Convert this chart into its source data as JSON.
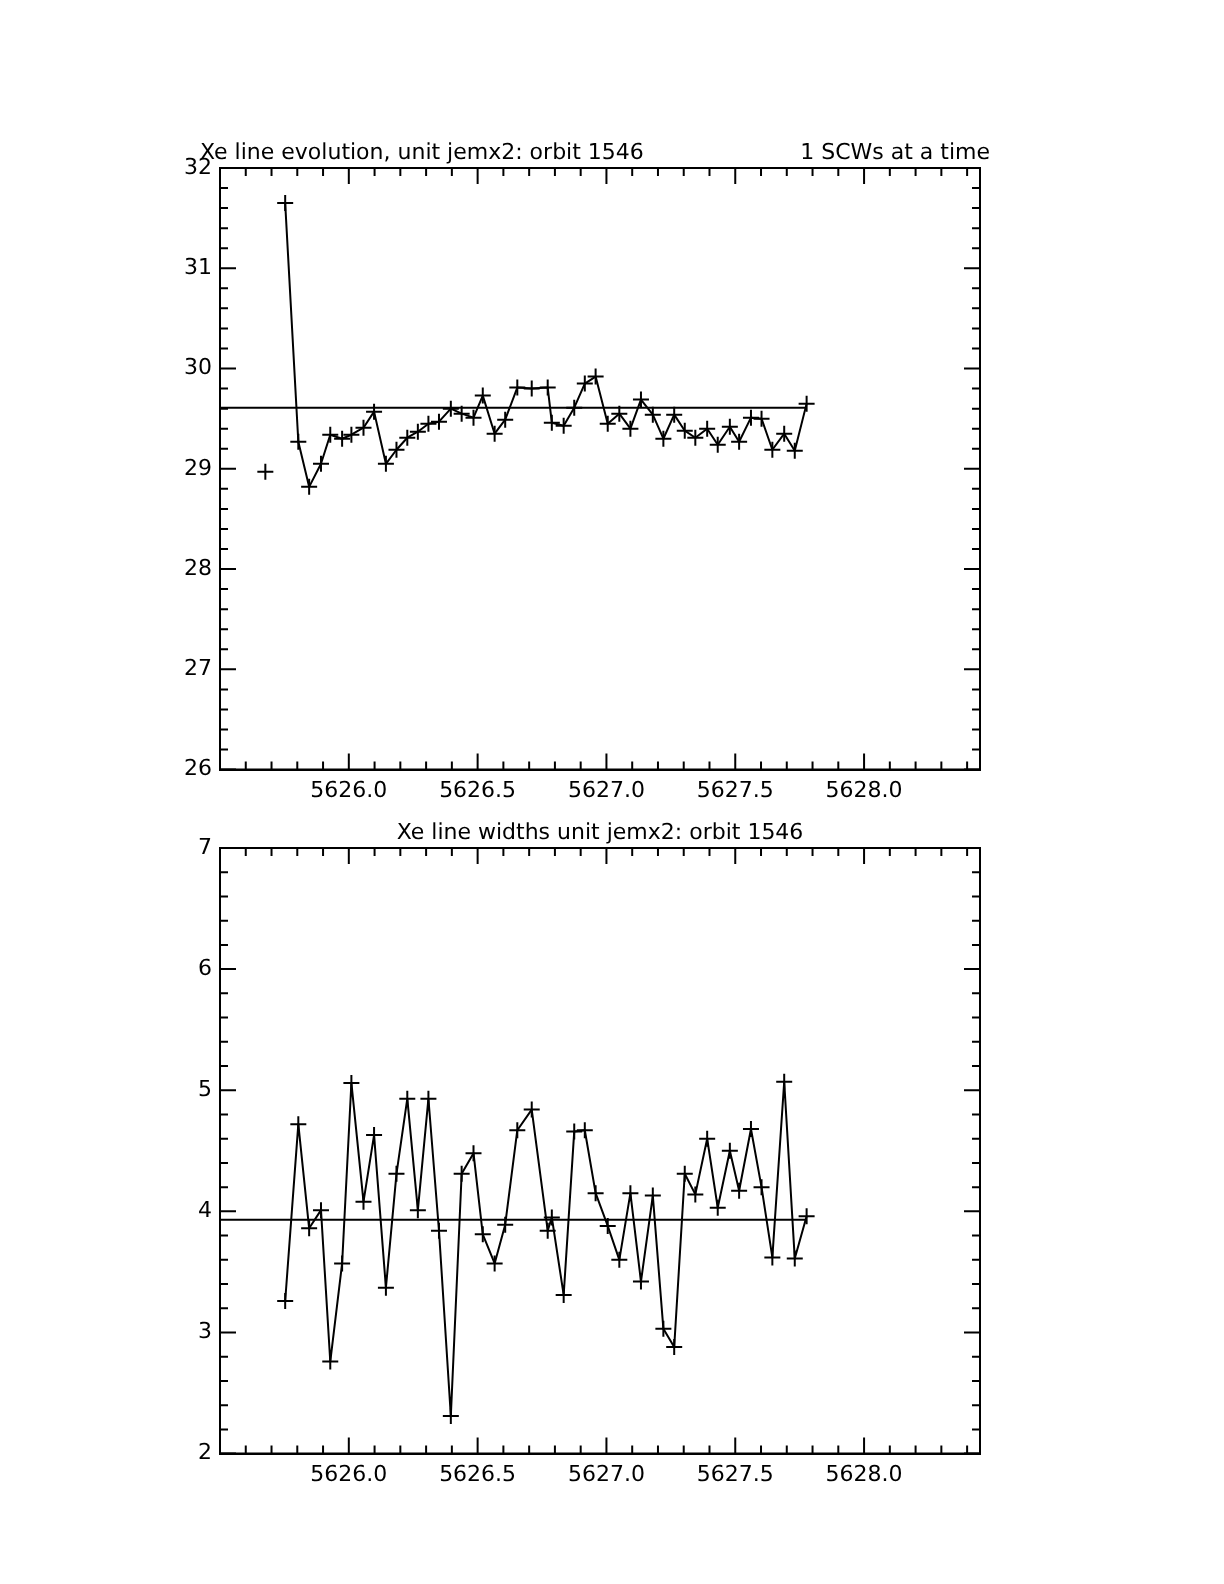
{
  "chart_data": [
    {
      "type": "line",
      "title": "Xe line evolution, unit jemx2: orbit 1546",
      "subtitle": "1 SCWs at a time",
      "marker": "cross",
      "grid": false,
      "legend": false,
      "x": [
        5625.676,
        5625.715,
        5625.753,
        5625.804,
        5625.846,
        5625.892,
        5625.928,
        5625.974,
        5626.01,
        5626.057,
        5626.098,
        5626.144,
        5626.185,
        5626.227,
        5626.268,
        5626.309,
        5626.35,
        5626.396,
        5626.438,
        5626.484,
        5626.52,
        5626.566,
        5626.607,
        5626.654,
        5626.71,
        5626.772,
        5626.788,
        5626.834,
        5626.875,
        5626.916,
        5626.958,
        5627.005,
        5627.05,
        5627.093,
        5627.134,
        5627.18,
        5627.221,
        5627.263,
        5627.304,
        5627.345,
        5627.391,
        5627.432,
        5627.479,
        5627.515,
        5627.561,
        5627.602,
        5627.644,
        5627.69,
        5627.731,
        5627.777
      ],
      "series": [
        {
          "color": "#000000",
          "values": [
            28.97,
            null,
            31.65,
            29.27,
            28.82,
            29.05,
            29.34,
            29.3,
            29.34,
            29.41,
            29.57,
            29.05,
            29.19,
            29.31,
            29.37,
            29.45,
            29.47,
            29.6,
            29.55,
            29.51,
            29.73,
            29.35,
            29.49,
            29.81,
            29.8,
            29.81,
            29.46,
            29.43,
            29.61,
            29.85,
            29.92,
            29.45,
            29.55,
            29.4,
            29.69,
            29.54,
            29.3,
            29.54,
            29.38,
            29.31,
            29.4,
            29.24,
            29.42,
            29.27,
            29.51,
            29.5,
            29.19,
            29.35,
            29.18,
            29.65
          ]
        }
      ],
      "ref_lines": [
        {
          "axis": "y",
          "value": 29.61,
          "color": "#000000"
        }
      ],
      "xlim": [
        5625.5,
        5628.45
      ],
      "xticks": [
        {
          "value": 5625.6,
          "label": null
        },
        {
          "value": 5625.7,
          "label": null
        },
        {
          "value": 5625.8,
          "label": null
        },
        {
          "value": 5625.9,
          "label": null
        },
        {
          "value": 5626,
          "label": "5626.0"
        },
        {
          "value": 5626.1,
          "label": null
        },
        {
          "value": 5626.2,
          "label": null
        },
        {
          "value": 5626.3,
          "label": null
        },
        {
          "value": 5626.4,
          "label": null
        },
        {
          "value": 5626.5,
          "label": "5626.5"
        },
        {
          "value": 5626.6,
          "label": null
        },
        {
          "value": 5626.7,
          "label": null
        },
        {
          "value": 5626.8,
          "label": null
        },
        {
          "value": 5626.9,
          "label": null
        },
        {
          "value": 5627,
          "label": "5627.0"
        },
        {
          "value": 5627.1,
          "label": null
        },
        {
          "value": 5627.2,
          "label": null
        },
        {
          "value": 5627.3,
          "label": null
        },
        {
          "value": 5627.4,
          "label": null
        },
        {
          "value": 5627.5,
          "label": "5627.5"
        },
        {
          "value": 5627.6,
          "label": null
        },
        {
          "value": 5627.7,
          "label": null
        },
        {
          "value": 5627.8,
          "label": null
        },
        {
          "value": 5627.9,
          "label": null
        },
        {
          "value": 5628,
          "label": "5628.0"
        },
        {
          "value": 5628.1,
          "label": null
        },
        {
          "value": 5628.2,
          "label": null
        },
        {
          "value": 5628.3,
          "label": null
        },
        {
          "value": 5628.4,
          "label": null
        }
      ],
      "ylim": [
        26,
        32
      ],
      "yticks": [
        26,
        {
          "value": 26.2,
          "label": null
        },
        {
          "value": 26.4,
          "label": null
        },
        {
          "value": 26.6,
          "label": null
        },
        {
          "value": 26.8,
          "label": null
        },
        27,
        {
          "value": 27.2,
          "label": null
        },
        {
          "value": 27.4,
          "label": null
        },
        {
          "value": 27.6,
          "label": null
        },
        {
          "value": 27.8,
          "label": null
        },
        28,
        {
          "value": 28.2,
          "label": null
        },
        {
          "value": 28.4,
          "label": null
        },
        {
          "value": 28.6,
          "label": null
        },
        {
          "value": 28.8,
          "label": null
        },
        29,
        {
          "value": 29.2,
          "label": null
        },
        {
          "value": 29.4,
          "label": null
        },
        {
          "value": 29.6,
          "label": null
        },
        {
          "value": 29.8,
          "label": null
        },
        30,
        {
          "value": 30.2,
          "label": null
        },
        {
          "value": 30.4,
          "label": null
        },
        {
          "value": 30.6,
          "label": null
        },
        {
          "value": 30.8,
          "label": null
        },
        31,
        {
          "value": 31.2,
          "label": null
        },
        {
          "value": 31.4,
          "label": null
        },
        {
          "value": 31.6,
          "label": null
        },
        {
          "value": 31.8,
          "label": null
        },
        32
      ]
    },
    {
      "type": "line",
      "title": "Xe line widths unit jemx2: orbit 1546",
      "marker": "cross",
      "grid": false,
      "legend": false,
      "x": [
        5625.753,
        5625.804,
        5625.846,
        5625.892,
        5625.928,
        5625.974,
        5626.01,
        5626.057,
        5626.098,
        5626.144,
        5626.185,
        5626.227,
        5626.268,
        5626.309,
        5626.35,
        5626.396,
        5626.438,
        5626.484,
        5626.52,
        5626.566,
        5626.607,
        5626.654,
        5626.71,
        5626.772,
        5626.788,
        5626.834,
        5626.875,
        5626.916,
        5626.958,
        5627.005,
        5627.05,
        5627.093,
        5627.134,
        5627.18,
        5627.221,
        5627.263,
        5627.304,
        5627.345,
        5627.391,
        5627.432,
        5627.479,
        5627.515,
        5627.561,
        5627.602,
        5627.644,
        5627.69,
        5627.731,
        5627.777
      ],
      "series": [
        {
          "color": "#000000",
          "values": [
            3.26,
            4.72,
            3.86,
            4.01,
            2.76,
            3.57,
            5.06,
            4.08,
            4.63,
            3.37,
            4.31,
            4.93,
            4.01,
            4.93,
            3.84,
            2.31,
            4.31,
            4.48,
            3.81,
            3.57,
            3.89,
            4.67,
            4.84,
            3.84,
            3.95,
            3.31,
            4.66,
            4.67,
            4.15,
            3.88,
            3.6,
            4.15,
            3.42,
            4.13,
            3.03,
            2.88,
            4.31,
            4.14,
            4.6,
            4.03,
            4.5,
            4.17,
            4.68,
            4.2,
            3.62,
            5.07,
            3.61,
            3.96
          ]
        }
      ],
      "ref_lines": [
        {
          "axis": "y",
          "value": 3.93,
          "color": "#000000"
        }
      ],
      "xlim": [
        5625.5,
        5628.45
      ],
      "xticks": [
        {
          "value": 5625.6,
          "label": null
        },
        {
          "value": 5625.7,
          "label": null
        },
        {
          "value": 5625.8,
          "label": null
        },
        {
          "value": 5625.9,
          "label": null
        },
        {
          "value": 5626,
          "label": "5626.0"
        },
        {
          "value": 5626.1,
          "label": null
        },
        {
          "value": 5626.2,
          "label": null
        },
        {
          "value": 5626.3,
          "label": null
        },
        {
          "value": 5626.4,
          "label": null
        },
        {
          "value": 5626.5,
          "label": "5626.5"
        },
        {
          "value": 5626.6,
          "label": null
        },
        {
          "value": 5626.7,
          "label": null
        },
        {
          "value": 5626.8,
          "label": null
        },
        {
          "value": 5626.9,
          "label": null
        },
        {
          "value": 5627,
          "label": "5627.0"
        },
        {
          "value": 5627.1,
          "label": null
        },
        {
          "value": 5627.2,
          "label": null
        },
        {
          "value": 5627.3,
          "label": null
        },
        {
          "value": 5627.4,
          "label": null
        },
        {
          "value": 5627.5,
          "label": "5627.5"
        },
        {
          "value": 5627.6,
          "label": null
        },
        {
          "value": 5627.7,
          "label": null
        },
        {
          "value": 5627.8,
          "label": null
        },
        {
          "value": 5627.9,
          "label": null
        },
        {
          "value": 5628,
          "label": "5628.0"
        },
        {
          "value": 5628.1,
          "label": null
        },
        {
          "value": 5628.2,
          "label": null
        },
        {
          "value": 5628.3,
          "label": null
        },
        {
          "value": 5628.4,
          "label": null
        }
      ],
      "ylim": [
        2,
        7
      ],
      "yticks": [
        2,
        {
          "value": 2.2,
          "label": null
        },
        {
          "value": 2.4,
          "label": null
        },
        {
          "value": 2.6,
          "label": null
        },
        {
          "value": 2.8,
          "label": null
        },
        3,
        {
          "value": 3.2,
          "label": null
        },
        {
          "value": 3.4,
          "label": null
        },
        {
          "value": 3.6,
          "label": null
        },
        {
          "value": 3.8,
          "label": null
        },
        4,
        {
          "value": 4.2,
          "label": null
        },
        {
          "value": 4.4,
          "label": null
        },
        {
          "value": 4.6,
          "label": null
        },
        {
          "value": 4.8,
          "label": null
        },
        5,
        {
          "value": 5.2,
          "label": null
        },
        {
          "value": 5.4,
          "label": null
        },
        {
          "value": 5.6,
          "label": null
        },
        {
          "value": 5.8,
          "label": null
        },
        6,
        {
          "value": 6.2,
          "label": null
        },
        {
          "value": 6.4,
          "label": null
        },
        {
          "value": 6.6,
          "label": null
        },
        {
          "value": 6.8,
          "label": null
        },
        7
      ]
    }
  ]
}
